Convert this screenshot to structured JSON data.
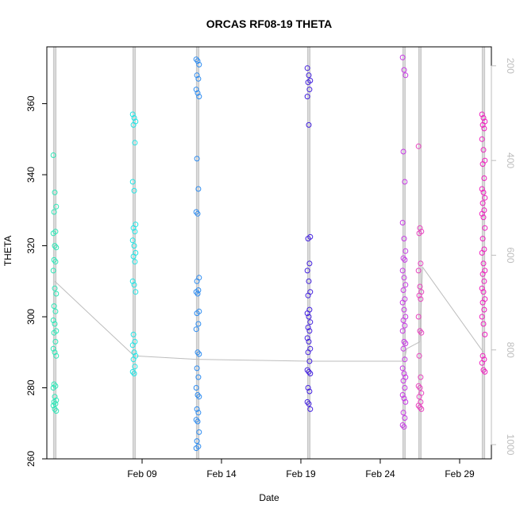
{
  "chart_data": {
    "type": "scatter",
    "title": "ORCAS RF08-19 THETA",
    "xlabel": "Date",
    "ylabel": "THETA",
    "x_axis": {
      "unit": "date",
      "range": [
        "2016-02-03",
        "2016-03-02"
      ],
      "tick_dates": [
        "2016-02-09",
        "2016-02-14",
        "2016-02-19",
        "2016-02-24",
        "2016-02-29"
      ],
      "tick_labels": [
        "Feb 09",
        "Feb 14",
        "Feb 19",
        "Feb 24",
        "Feb 29"
      ]
    },
    "y_axis": {
      "range": [
        260,
        376
      ],
      "ticks": [
        260,
        280,
        300,
        320,
        340,
        360
      ]
    },
    "y2_axis": {
      "label": "",
      "reversed": true,
      "range": [
        1030,
        160
      ],
      "ticks": [
        200,
        400,
        600,
        800,
        1000
      ],
      "tick_labels": [
        "200",
        "400",
        "600",
        "800",
        "1000"
      ],
      "color": "#bdbdbd"
    },
    "grid": false,
    "legend": "none",
    "series": [
      {
        "x": "2016-02-03 12:00",
        "color": "#2ee8b8",
        "points": [
          345.5,
          335,
          331,
          329.5,
          324,
          323.5,
          320,
          319.5,
          316,
          315.5,
          313,
          308,
          306.5,
          303,
          301.5,
          299,
          298,
          296,
          295.5,
          293,
          291,
          290,
          289,
          281,
          280.5,
          280,
          277.5,
          276.5,
          276,
          275.5,
          275,
          274,
          273.5
        ]
      },
      {
        "x": "2016-02-08 12:00",
        "color": "#22e6e6",
        "points": [
          357,
          356,
          355,
          354,
          349,
          338,
          335.5,
          326,
          325,
          324,
          321.5,
          320,
          318,
          317,
          315.5,
          310,
          309,
          307,
          295,
          293,
          292,
          290,
          289,
          288,
          286,
          284.5,
          284
        ]
      },
      {
        "x": "2016-02-12 12:00",
        "color": "#2e8cf0",
        "points": [
          372.5,
          372,
          371,
          368,
          367,
          364,
          363,
          362,
          344.5,
          336,
          329.5,
          329,
          311,
          310,
          307.5,
          307,
          306.5,
          301.5,
          301,
          298,
          296.5,
          290,
          289.5,
          285.5,
          283,
          280,
          278,
          277.5,
          274,
          273,
          271,
          270.5,
          267.5,
          265,
          263.5,
          263
        ]
      },
      {
        "x": "2016-02-19 12:00",
        "color": "#4422e0",
        "points": [
          370,
          368,
          366.5,
          366,
          364,
          362,
          354,
          322.5,
          322,
          315,
          313,
          310,
          307,
          306,
          302,
          301,
          300,
          298.5,
          297,
          296,
          294,
          293,
          291,
          290,
          287.5,
          285,
          284.5,
          284,
          280,
          279,
          276,
          275.5,
          274
        ]
      },
      {
        "x": "2016-02-25 12:00",
        "color": "#c83ce6",
        "points": [
          373,
          369.5,
          368,
          346.5,
          338,
          326.5,
          322,
          318.5,
          316.5,
          316,
          313,
          311,
          309,
          307.5,
          305,
          304,
          302,
          300,
          299,
          297.5,
          296,
          293,
          292.5,
          291,
          288,
          285.5,
          284,
          283,
          282,
          280,
          278,
          277,
          276,
          273,
          271.5,
          269.5,
          269
        ]
      },
      {
        "x": "2016-02-26 12:00",
        "color": "#e844c0",
        "points": [
          348,
          325,
          324,
          323.5,
          315,
          313,
          308.5,
          307,
          306,
          305,
          300,
          296,
          295.5,
          289,
          283,
          280.5,
          280,
          278.5,
          277.5,
          276,
          275,
          274.5,
          274
        ]
      },
      {
        "x": "2016-03-01 12:00",
        "color": "#f020c0",
        "points": [
          357,
          356,
          355,
          354,
          353,
          350,
          347,
          344,
          343,
          339,
          336,
          335,
          333.5,
          332,
          330,
          329,
          328,
          325,
          322,
          319,
          318,
          315,
          313,
          312,
          310,
          308,
          307,
          305,
          304,
          302,
          300,
          298,
          295,
          289,
          288,
          287,
          285,
          284.5
        ]
      }
    ],
    "gray_line": [
      [
        "2016-02-03 12:00",
        310
      ],
      [
        "2016-02-08 12:00",
        289
      ],
      [
        "2016-02-12 12:00",
        288
      ],
      [
        "2016-02-19 12:00",
        287.5
      ],
      [
        "2016-02-25 12:00",
        287.5
      ],
      [
        "2016-02-25 16:00",
        291
      ],
      [
        "2016-02-26 12:00",
        293
      ],
      [
        "2016-02-26 16:00",
        314
      ],
      [
        "2016-03-01 12:00",
        290
      ]
    ]
  }
}
